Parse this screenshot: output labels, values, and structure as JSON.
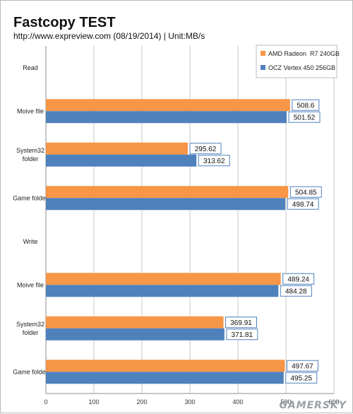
{
  "chart_data": {
    "type": "bar",
    "orientation": "horizontal",
    "title": "Fastcopy TEST",
    "subtitle": "http://www.expreview.com (08/19/2014) | Unit:MB/s",
    "categories": [
      "Read",
      "Moive file",
      "System32\nfolder",
      "Game folder",
      "Write",
      "Moive file",
      "System32\nfolder",
      "Game folder"
    ],
    "series": [
      {
        "name": "AMD Radeon  R7 240GB",
        "color": "#f79646",
        "values": [
          null,
          508.6,
          295.62,
          504.85,
          null,
          489.24,
          369.91,
          497.67
        ]
      },
      {
        "name": "OCZ Vertex 450 256GB",
        "color": "#4f81bd",
        "values": [
          null,
          501.52,
          313.62,
          498.74,
          null,
          484.28,
          371.81,
          495.25
        ]
      }
    ],
    "xlim": [
      0,
      600
    ],
    "xticks": [
      0,
      100,
      200,
      300,
      400,
      500,
      600
    ],
    "grid": true,
    "legend_position": "top-right"
  },
  "watermark": "GAMERSKY"
}
